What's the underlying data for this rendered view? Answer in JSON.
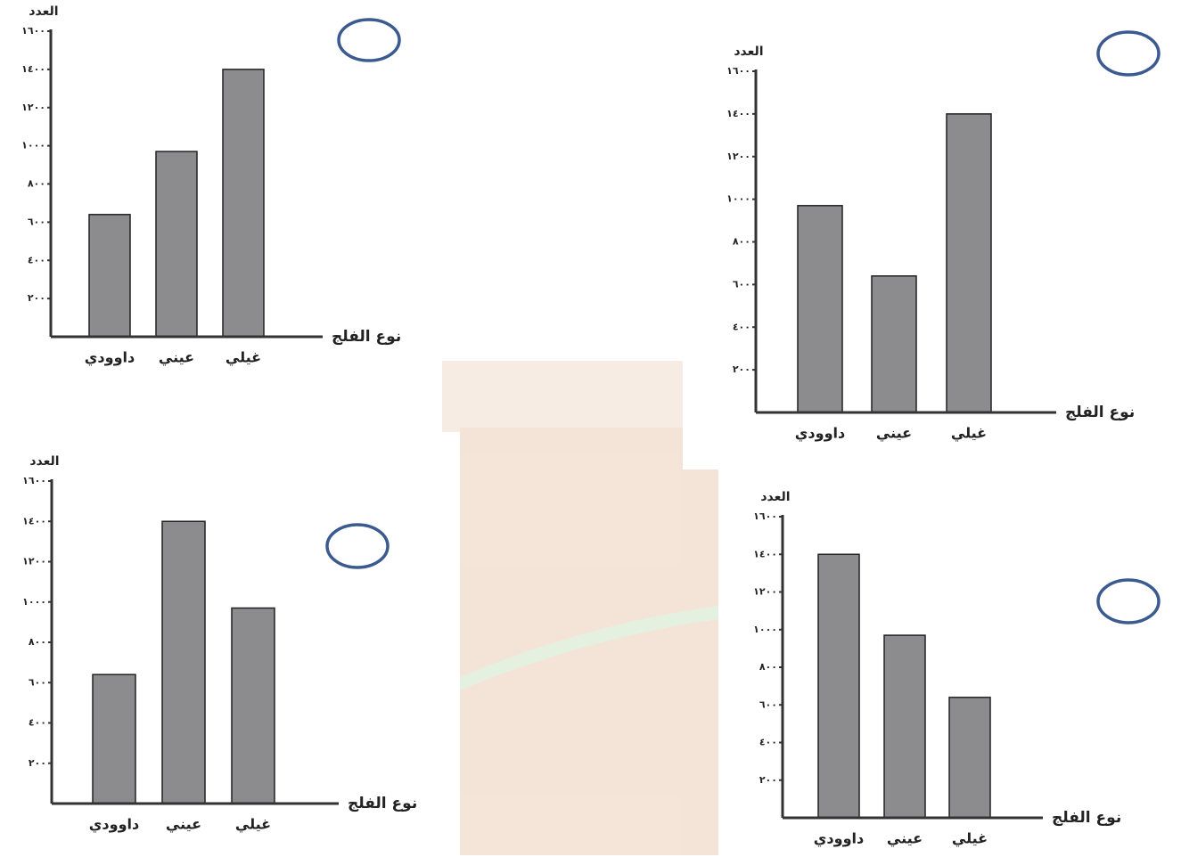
{
  "chart_data": [
    {
      "type": "bar",
      "y_label": "العدد",
      "x_label": "نوع الفلج",
      "categories": [
        "داوودي",
        "عيني",
        "غيلي"
      ],
      "values": [
        640,
        970,
        1400
      ],
      "color": "#8c8c8e",
      "ylim": [
        0,
        1600
      ],
      "yticks": [
        {
          "value": 200,
          "label": "٢٠٠"
        },
        {
          "value": 400,
          "label": "٤٠٠"
        },
        {
          "value": 600,
          "label": "٦٠٠"
        },
        {
          "value": 800,
          "label": "٨٠٠"
        },
        {
          "value": 1000,
          "label": "١٠٠٠"
        },
        {
          "value": 1200,
          "label": "١٢٠٠"
        },
        {
          "value": 1400,
          "label": "١٤٠٠"
        },
        {
          "value": 1600,
          "label": "١٦٠٠"
        }
      ]
    },
    {
      "type": "bar",
      "y_label": "العدد",
      "x_label": "نوع الفلج",
      "categories": [
        "داوودي",
        "عيني",
        "غيلي"
      ],
      "values": [
        970,
        640,
        1400
      ],
      "color": "#8c8c8e",
      "ylim": [
        0,
        1600
      ],
      "yticks": [
        {
          "value": 200,
          "label": "٢٠٠"
        },
        {
          "value": 400,
          "label": "٤٠٠"
        },
        {
          "value": 600,
          "label": "٦٠٠"
        },
        {
          "value": 800,
          "label": "٨٠٠"
        },
        {
          "value": 1000,
          "label": "١٠٠٠"
        },
        {
          "value": 1200,
          "label": "١٢٠٠"
        },
        {
          "value": 1400,
          "label": "١٤٠٠"
        },
        {
          "value": 1600,
          "label": "١٦٠٠"
        }
      ]
    },
    {
      "type": "bar",
      "y_label": "العدد",
      "x_label": "نوع الفلج",
      "categories": [
        "داوودي",
        "عيني",
        "غيلي"
      ],
      "values": [
        640,
        1400,
        970
      ],
      "color": "#8c8c8e",
      "ylim": [
        0,
        1600
      ],
      "yticks": [
        {
          "value": 200,
          "label": "٢٠٠"
        },
        {
          "value": 400,
          "label": "٤٠٠"
        },
        {
          "value": 600,
          "label": "٦٠٠"
        },
        {
          "value": 800,
          "label": "٨٠٠"
        },
        {
          "value": 1000,
          "label": "١٠٠٠"
        },
        {
          "value": 1200,
          "label": "١٢٠٠"
        },
        {
          "value": 1400,
          "label": "١٤٠٠"
        },
        {
          "value": 1600,
          "label": "١٦٠٠"
        }
      ]
    },
    {
      "type": "bar",
      "y_label": "العدد",
      "x_label": "نوع الفلج",
      "categories": [
        "داوودي",
        "عيني",
        "غيلي"
      ],
      "values": [
        1400,
        970,
        640
      ],
      "color": "#8c8c8e",
      "ylim": [
        0,
        1600
      ],
      "yticks": [
        {
          "value": 200,
          "label": "٢٠٠"
        },
        {
          "value": 400,
          "label": "٤٠٠"
        },
        {
          "value": 600,
          "label": "٦٠٠"
        },
        {
          "value": 800,
          "label": "٨٠٠"
        },
        {
          "value": 1000,
          "label": "١٠٠٠"
        },
        {
          "value": 1200,
          "label": "١٢٠٠"
        },
        {
          "value": 1400,
          "label": "١٤٠٠"
        },
        {
          "value": 1600,
          "label": "١٦٠٠"
        }
      ]
    }
  ]
}
